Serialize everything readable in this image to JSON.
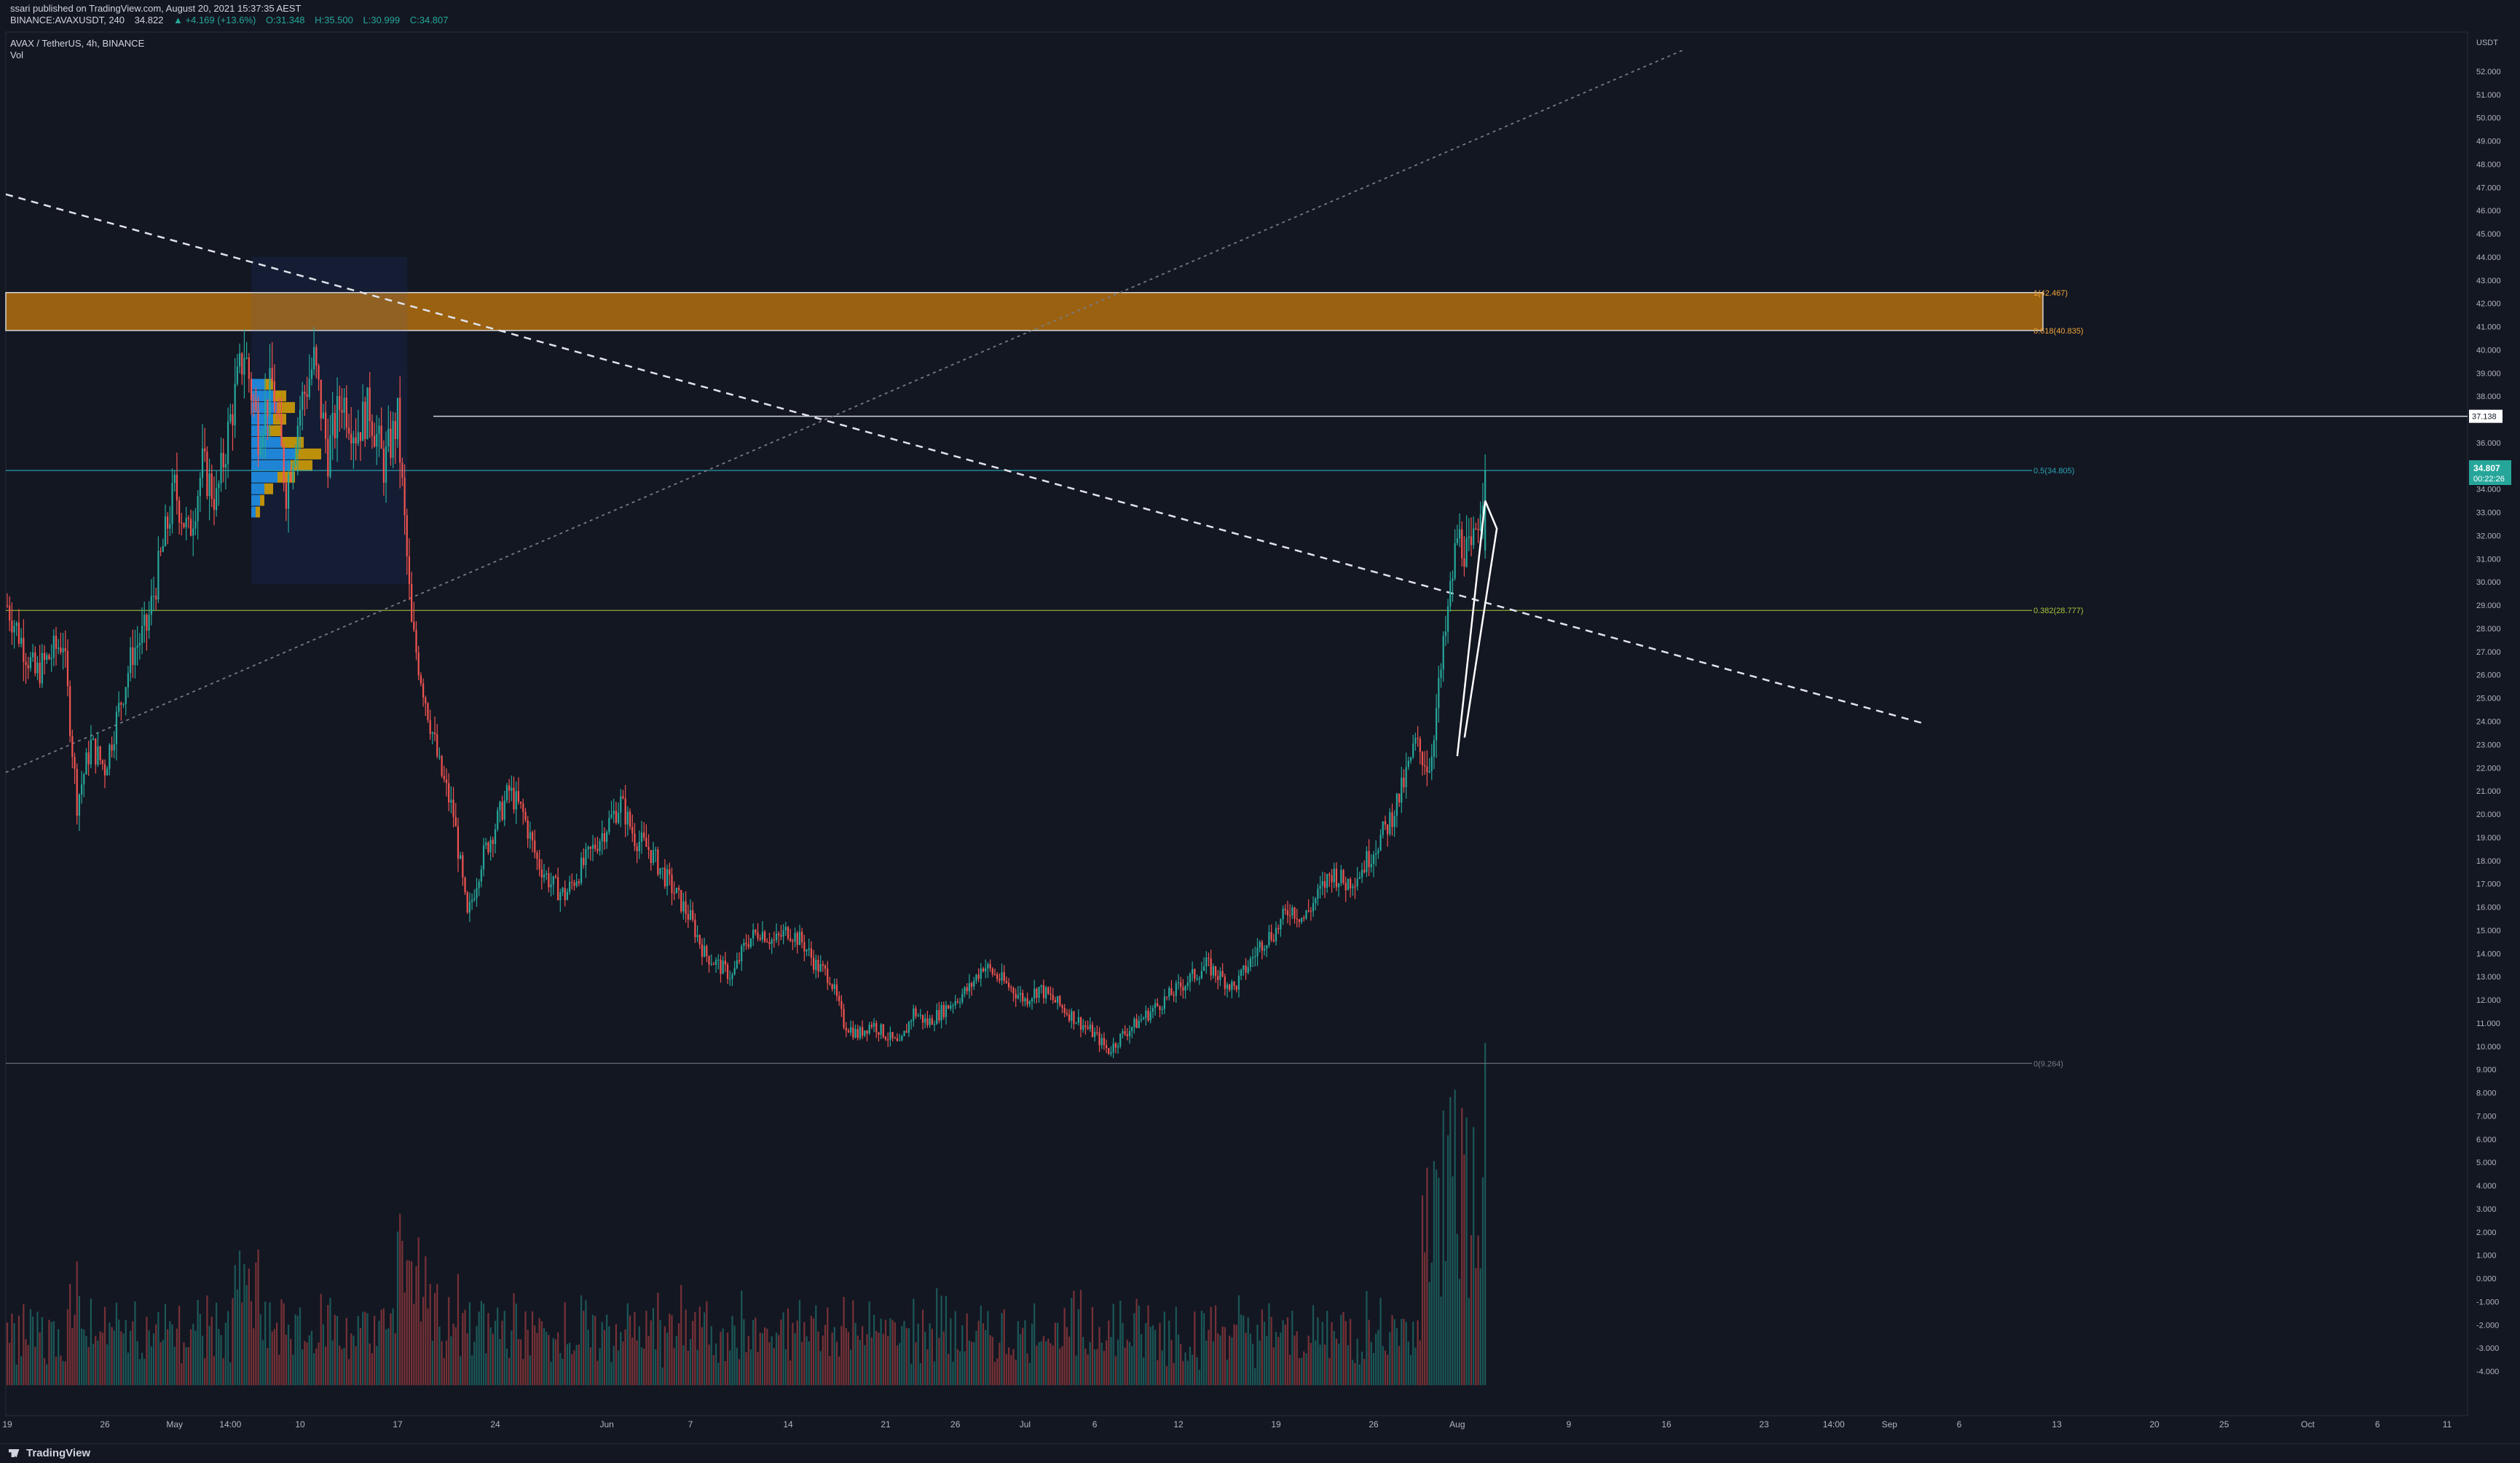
{
  "publisher_line": "ssari published on TradingView.com, August 20, 2021 15:37:35 AEST",
  "symbol_line": {
    "symbol": "BINANCE:AVAXUSDT, 240",
    "last": "34.822",
    "change": "▲ +4.169 (+13.6%)",
    "open": "O:31.348",
    "high": "H:35.500",
    "low": "L:30.999",
    "close": "C:34.807"
  },
  "legend": {
    "pair": "AVAX / TetherUS, 4h, BINANCE",
    "volume": "Vol"
  },
  "brand": "TradingView",
  "colors": {
    "background": "#131722",
    "up": "#26a69a",
    "down": "#ef5350",
    "zone": "#b8720e",
    "fib_05": "#2aa3b5",
    "fib_0382": "#a6c43b",
    "fib_0": "#787b86",
    "price_tag": "#26a69a"
  },
  "chart_data": {
    "type": "candlestick",
    "instrument": "AVAX / TetherUS",
    "interval": "4h",
    "exchange": "BINANCE",
    "currency": "USDT",
    "price_axis": {
      "unit": "USDT",
      "ylim": [
        -5,
        53
      ],
      "ticks": [
        "52.000",
        "51.000",
        "50.000",
        "49.000",
        "48.000",
        "47.000",
        "46.000",
        "45.000",
        "44.000",
        "43.000",
        "42.000",
        "41.000",
        "40.000",
        "39.000",
        "38.000",
        "37.000",
        "36.000",
        "35.000",
        "34.000",
        "33.000",
        "32.000",
        "31.000",
        "30.000",
        "29.000",
        "28.000",
        "27.000",
        "26.000",
        "25.000",
        "24.000",
        "23.000",
        "22.000",
        "21.000",
        "20.000",
        "19.000",
        "18.000",
        "17.000",
        "16.000",
        "15.000",
        "14.000",
        "13.000",
        "12.000",
        "11.000",
        "10.000",
        "9.000",
        "8.000",
        "7.000",
        "6.000",
        "5.000",
        "4.000",
        "3.000",
        "2.000",
        "1.000",
        "0.000",
        "-1.000",
        "-2.000",
        "-3.000",
        "-4.000"
      ]
    },
    "time_axis": {
      "ticks": [
        {
          "label": "19",
          "day": 0
        },
        {
          "label": "26",
          "day": 7
        },
        {
          "label": "May",
          "day": 12
        },
        {
          "label": "14:00",
          "day": 16
        },
        {
          "label": "10",
          "day": 21
        },
        {
          "label": "17",
          "day": 28
        },
        {
          "label": "24",
          "day": 35
        },
        {
          "label": "Jun",
          "day": 43
        },
        {
          "label": "7",
          "day": 49
        },
        {
          "label": "14",
          "day": 56
        },
        {
          "label": "21",
          "day": 63
        },
        {
          "label": "26",
          "day": 68
        },
        {
          "label": "Jul",
          "day": 73
        },
        {
          "label": "6",
          "day": 78
        },
        {
          "label": "12",
          "day": 84
        },
        {
          "label": "19",
          "day": 91
        },
        {
          "label": "26",
          "day": 98
        },
        {
          "label": "Aug",
          "day": 104
        },
        {
          "label": "9",
          "day": 112
        },
        {
          "label": "16",
          "day": 119
        },
        {
          "label": "23",
          "day": 126
        },
        {
          "label": "14:00",
          "day": 131
        },
        {
          "label": "Sep",
          "day": 135
        },
        {
          "label": "6",
          "day": 140
        },
        {
          "label": "13",
          "day": 147
        },
        {
          "label": "20",
          "day": 154
        },
        {
          "label": "25",
          "day": 159
        },
        {
          "label": "Oct",
          "day": 165
        },
        {
          "label": "6",
          "day": 170
        },
        {
          "label": "11",
          "day": 175
        }
      ]
    },
    "price_path": [
      [
        0,
        29.0
      ],
      [
        2,
        26.0
      ],
      [
        4,
        27.5
      ],
      [
        5,
        20.5
      ],
      [
        6,
        23.0
      ],
      [
        7,
        22.0
      ],
      [
        8,
        24.5
      ],
      [
        9,
        27.0
      ],
      [
        10,
        28.0
      ],
      [
        11,
        31.0
      ],
      [
        12,
        34.0
      ],
      [
        13,
        32.0
      ],
      [
        14,
        35.0
      ],
      [
        15,
        33.5
      ],
      [
        16,
        37.0
      ],
      [
        17,
        40.0
      ],
      [
        18,
        36.5
      ],
      [
        19,
        38.5
      ],
      [
        20,
        34.0
      ],
      [
        21,
        37.5
      ],
      [
        22,
        39.5
      ],
      [
        23,
        35.5
      ],
      [
        24,
        38.0
      ],
      [
        25,
        36.5
      ],
      [
        26,
        37.5
      ],
      [
        27,
        35.0
      ],
      [
        28,
        37.0
      ],
      [
        29,
        28.0
      ],
      [
        30,
        25.0
      ],
      [
        31,
        22.0
      ],
      [
        32,
        20.0
      ],
      [
        33,
        15.5
      ],
      [
        34,
        18.0
      ],
      [
        35,
        19.5
      ],
      [
        36,
        21.0
      ],
      [
        37,
        20.0
      ],
      [
        38,
        18.0
      ],
      [
        39,
        17.0
      ],
      [
        40,
        16.5
      ],
      [
        41,
        17.5
      ],
      [
        42,
        18.5
      ],
      [
        43,
        19.5
      ],
      [
        44,
        20.5
      ],
      [
        45,
        19.0
      ],
      [
        46,
        18.5
      ],
      [
        47,
        17.5
      ],
      [
        48,
        16.5
      ],
      [
        49,
        15.5
      ],
      [
        50,
        14.0
      ],
      [
        51,
        13.5
      ],
      [
        52,
        13.0
      ],
      [
        53,
        14.5
      ],
      [
        54,
        15.0
      ],
      [
        55,
        14.5
      ],
      [
        56,
        15.0
      ],
      [
        57,
        14.5
      ],
      [
        58,
        13.5
      ],
      [
        59,
        13.0
      ],
      [
        60,
        11.0
      ],
      [
        61,
        10.5
      ],
      [
        62,
        11.0
      ],
      [
        63,
        10.5
      ],
      [
        64,
        10.0
      ],
      [
        65,
        11.5
      ],
      [
        66,
        11.0
      ],
      [
        67,
        11.5
      ],
      [
        68,
        12.0
      ],
      [
        69,
        12.5
      ],
      [
        70,
        13.5
      ],
      [
        71,
        13.0
      ],
      [
        72,
        12.5
      ],
      [
        73,
        12.0
      ],
      [
        74,
        12.5
      ],
      [
        75,
        12.0
      ],
      [
        76,
        11.5
      ],
      [
        77,
        11.0
      ],
      [
        78,
        10.5
      ],
      [
        79,
        9.8
      ],
      [
        80,
        10.5
      ],
      [
        81,
        11.0
      ],
      [
        82,
        11.5
      ],
      [
        83,
        12.0
      ],
      [
        84,
        12.5
      ],
      [
        85,
        13.0
      ],
      [
        86,
        13.5
      ],
      [
        87,
        13.0
      ],
      [
        88,
        12.5
      ],
      [
        89,
        13.5
      ],
      [
        90,
        14.5
      ],
      [
        91,
        15.0
      ],
      [
        92,
        16.0
      ],
      [
        93,
        15.5
      ],
      [
        94,
        16.5
      ],
      [
        95,
        17.5
      ],
      [
        96,
        17.0
      ],
      [
        97,
        17.5
      ],
      [
        98,
        18.5
      ],
      [
        99,
        19.5
      ],
      [
        100,
        21.0
      ],
      [
        101,
        23.0
      ],
      [
        102,
        22.0
      ],
      [
        103,
        27.0
      ],
      [
        104,
        32.0
      ],
      [
        105,
        31.0
      ],
      [
        106,
        34.8
      ]
    ],
    "profile_zone_bins": [
      {
        "price": 36.5,
        "up": 0.4,
        "down": 0.3
      },
      {
        "price": 36.0,
        "up": 0.7,
        "down": 0.5
      },
      {
        "price": 35.5,
        "up": 1.0,
        "down": 0.6
      },
      {
        "price": 35.0,
        "up": 0.9,
        "down": 0.5
      },
      {
        "price": 34.5,
        "up": 0.6,
        "down": 0.4
      },
      {
        "price": 34.0,
        "up": 0.3,
        "down": 0.2
      },
      {
        "price": 37.0,
        "up": 0.5,
        "down": 0.3
      },
      {
        "price": 37.5,
        "up": 0.6,
        "down": 0.4
      },
      {
        "price": 38.0,
        "up": 0.5,
        "down": 0.3
      },
      {
        "price": 38.5,
        "up": 0.3,
        "down": 0.2
      },
      {
        "price": 33.5,
        "up": 0.2,
        "down": 0.1
      },
      {
        "price": 33.0,
        "up": 0.1,
        "down": 0.1
      }
    ],
    "volume_spike_day": 104
  },
  "fib_levels": [
    {
      "label": "1(42.467)",
      "value": 42.467,
      "color": "#f0a33a"
    },
    {
      "label": "0.618(40.835)",
      "value": 40.835,
      "color": "#f0a33a"
    },
    {
      "label": "0.5(34.805)",
      "value": 34.805,
      "color": "#2aa3b5"
    },
    {
      "label": "0.382(28.777)",
      "value": 28.777,
      "color": "#a6c43b"
    },
    {
      "label": "0(9.264)",
      "value": 9.264,
      "color": "#787b86"
    }
  ],
  "horizontal_line": {
    "label": "37.138",
    "value": 37.138
  },
  "current_price": {
    "label": "34.807",
    "countdown": "00:22:26"
  },
  "zone": {
    "top": 42.467,
    "bottom": 40.835
  }
}
